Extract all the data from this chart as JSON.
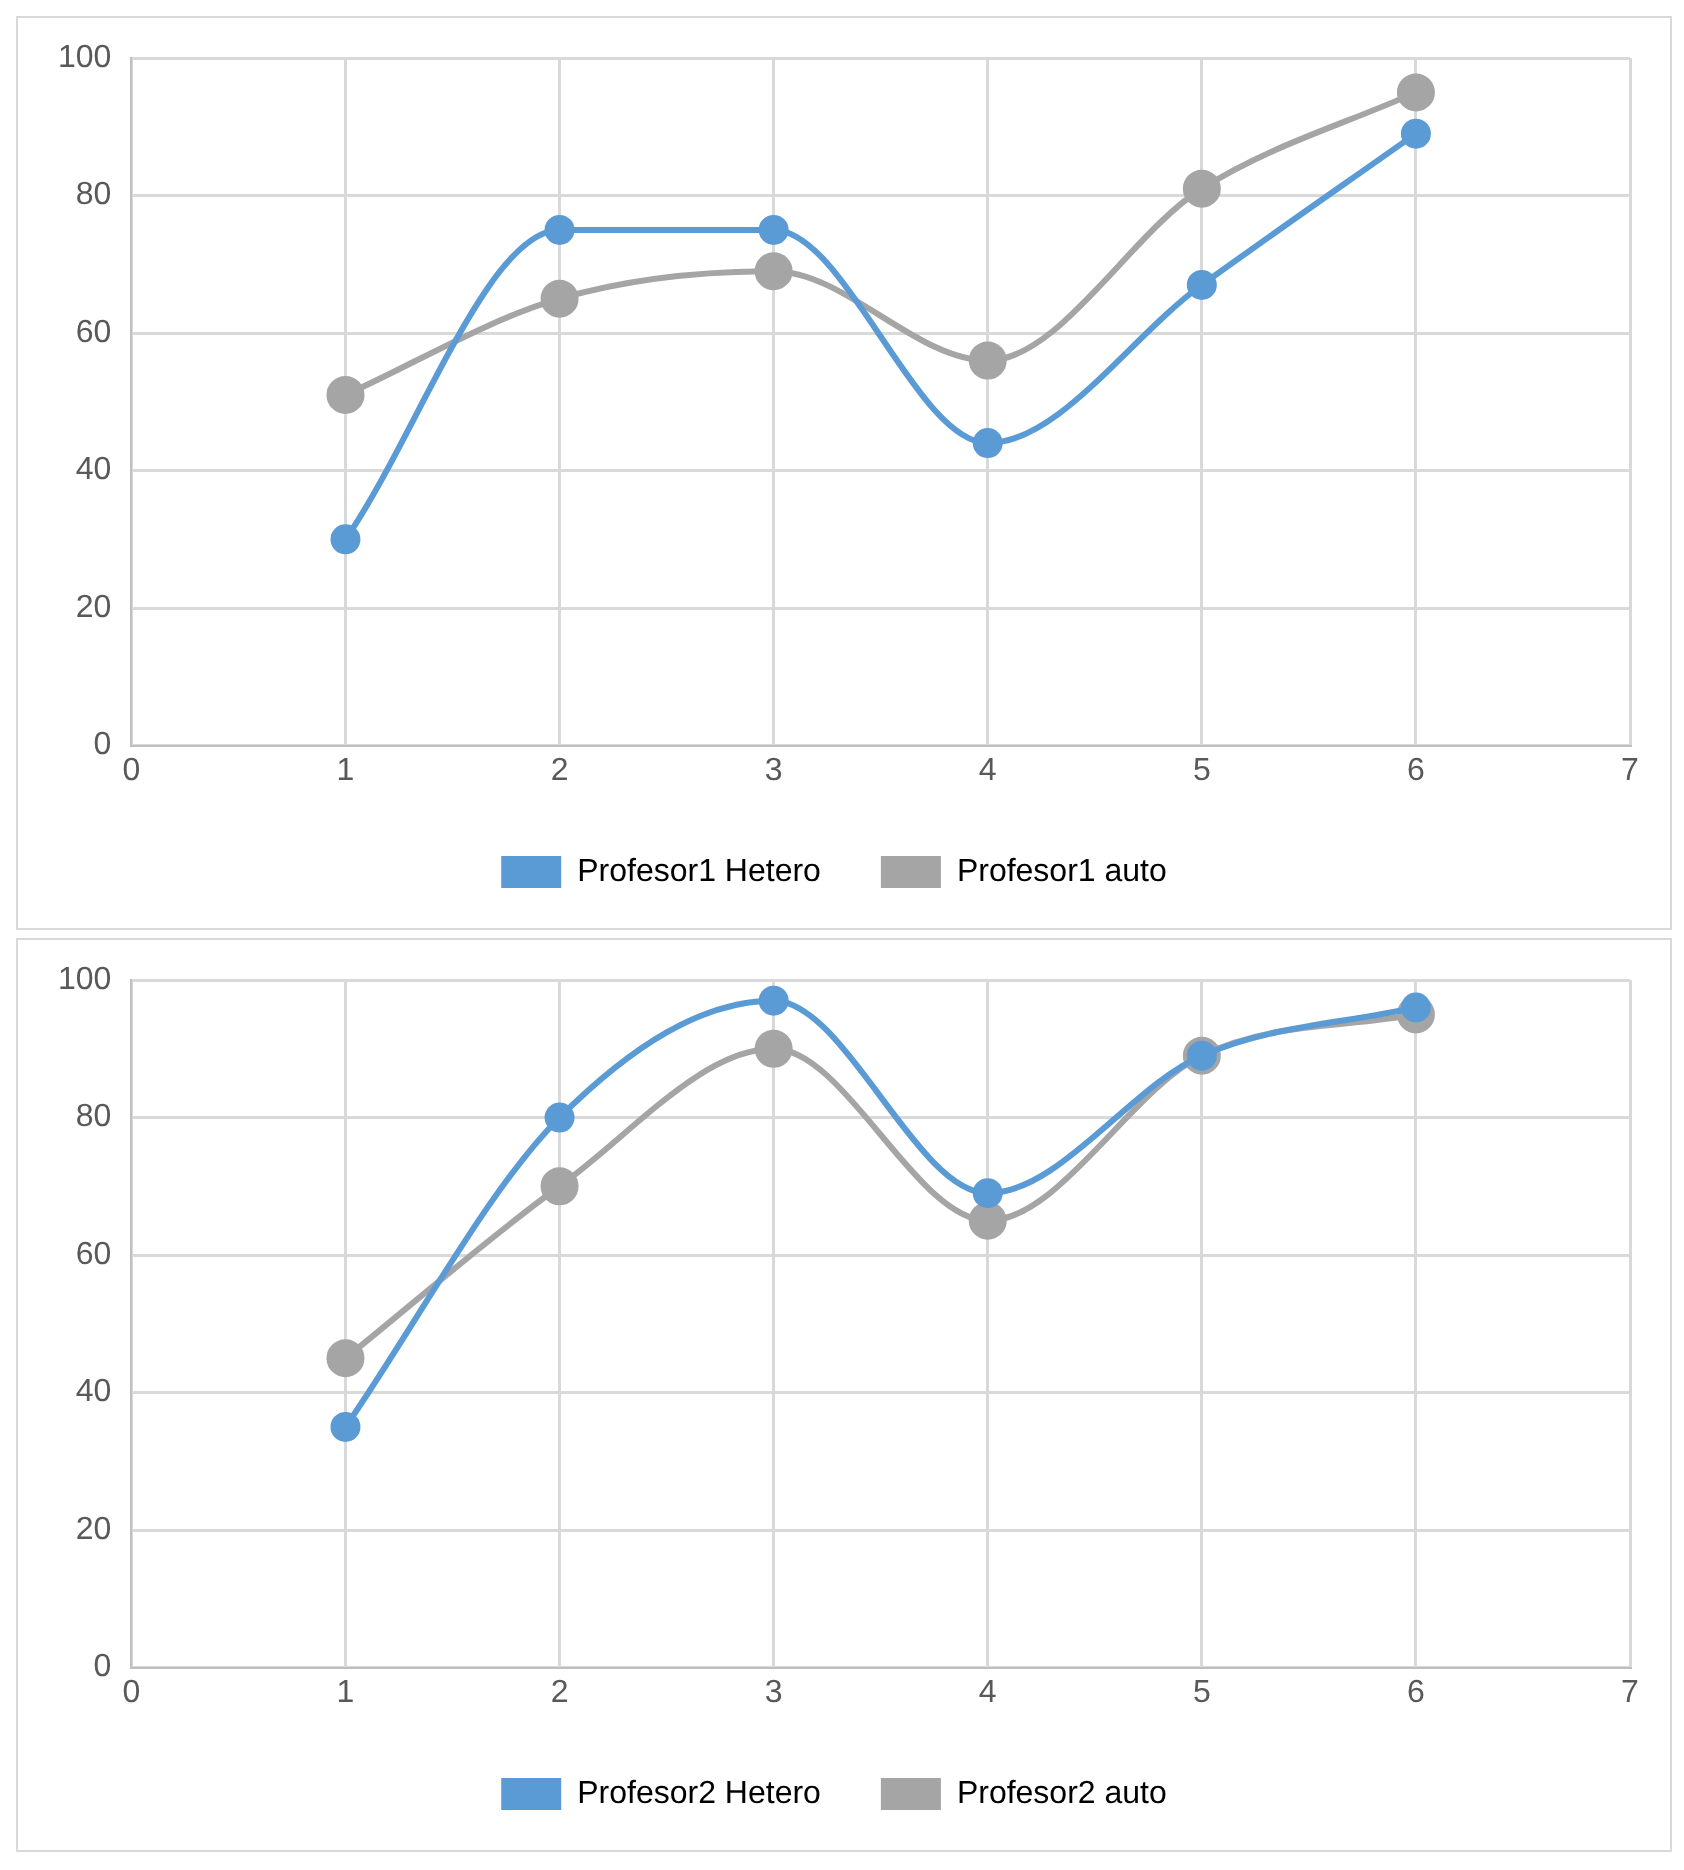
{
  "chart_data": [
    {
      "type": "line",
      "x": [
        1,
        2,
        3,
        4,
        5,
        6
      ],
      "xlim": [
        0,
        7
      ],
      "xticks": [
        0,
        1,
        2,
        3,
        4,
        5,
        6,
        7
      ],
      "ylim": [
        0,
        100
      ],
      "yticks": [
        0,
        20,
        40,
        60,
        80,
        100
      ],
      "grid": true,
      "legend": "bottom",
      "marker": "circle",
      "line_style": "solid",
      "series": [
        {
          "name": "Profesor1 Hetero",
          "color": "#5b9bd5",
          "values": [
            30,
            75,
            75,
            44,
            67,
            89
          ]
        },
        {
          "name": "Profesor1 auto",
          "color": "#a5a5a5",
          "values": [
            51,
            65,
            69,
            56,
            81,
            95
          ]
        }
      ]
    },
    {
      "type": "line",
      "x": [
        1,
        2,
        3,
        4,
        5,
        6
      ],
      "xlim": [
        0,
        7
      ],
      "xticks": [
        0,
        1,
        2,
        3,
        4,
        5,
        6,
        7
      ],
      "ylim": [
        0,
        100
      ],
      "yticks": [
        0,
        20,
        40,
        60,
        80,
        100
      ],
      "grid": true,
      "legend": "bottom",
      "marker": "circle",
      "line_style": "solid",
      "series": [
        {
          "name": "Profesor2 Hetero",
          "color": "#5b9bd5",
          "values": [
            35,
            80,
            97,
            69,
            89,
            96
          ]
        },
        {
          "name": "Profesor2 auto",
          "color": "#a5a5a5",
          "values": [
            45,
            70,
            90,
            65,
            89,
            95
          ]
        }
      ]
    }
  ]
}
